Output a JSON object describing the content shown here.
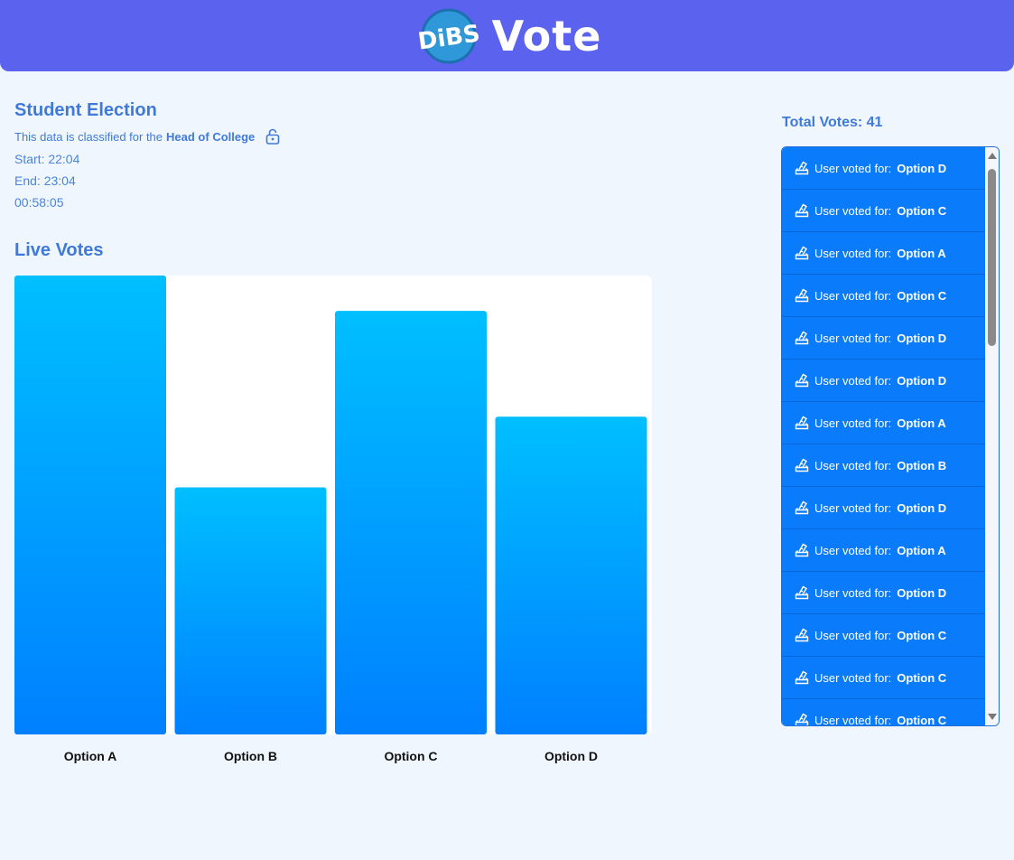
{
  "header": {
    "logo_badge_text": "DiBS",
    "logo_text": "Vote",
    "badge_color": "#2f98d8"
  },
  "election": {
    "title": "Student Election",
    "classified_prefix": "This data is classified for the",
    "classified_role": "Head of College",
    "start": "Start: 22:04",
    "end": "End: 23:04",
    "countdown": "00:58:05",
    "lock_icon": "lock-icon"
  },
  "live_votes": {
    "title": "Live Votes"
  },
  "chart_data": {
    "type": "bar",
    "categories": [
      "Option A",
      "Option B",
      "Option C",
      "Option D"
    ],
    "values": [
      13,
      7,
      12,
      9
    ],
    "ylim": [
      0,
      13
    ],
    "grid": false,
    "gradient": [
      "#00bfff",
      "#0080ff"
    ]
  },
  "sidebar": {
    "total_votes": "Total Votes: 41",
    "vote_prefix": "User voted for:",
    "votes": [
      "Option D",
      "Option C",
      "Option A",
      "Option C",
      "Option D",
      "Option D",
      "Option A",
      "Option B",
      "Option D",
      "Option A",
      "Option D",
      "Option C",
      "Option C",
      "Option C"
    ],
    "item_icon": "ballot-icon",
    "item_color": "#0a7cfb"
  }
}
